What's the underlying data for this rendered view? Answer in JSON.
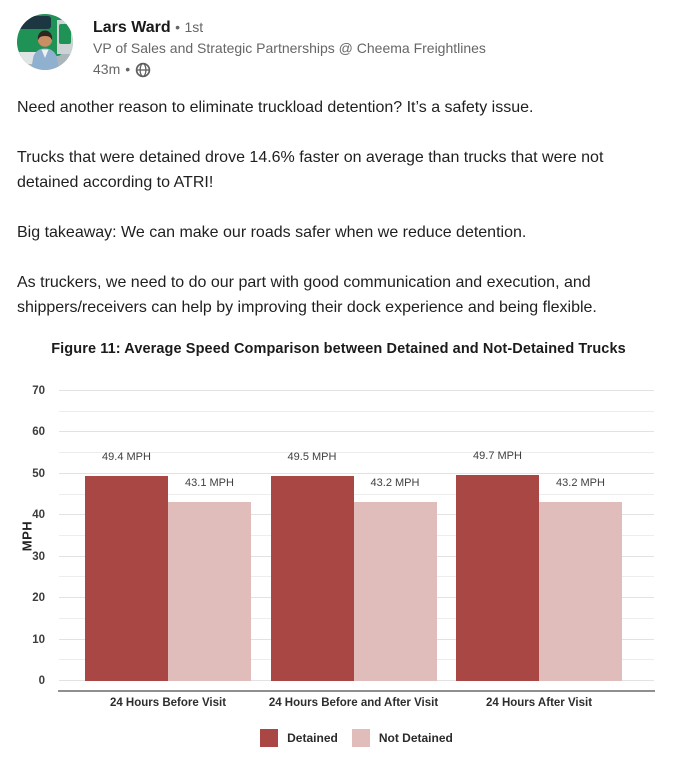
{
  "post": {
    "author": {
      "name": "Lars Ward",
      "connection_degree": "1st",
      "separator": "•",
      "headline": "VP of Sales and Strategic Partnerships @ Cheema Freightlines",
      "timestamp": "43m",
      "visibility_icon": "globe-icon"
    },
    "body_paragraphs": [
      "Need another reason to eliminate truckload detention? It’s a safety issue.",
      "Trucks that were detained drove 14.6% faster on average than trucks that were not detained according to ATRI!",
      "Big takeaway: We can make our roads safer when we reduce detention.",
      "As truckers, we need to do our part with good communication and execution, and shippers/receivers can help by improving their dock experience and being flexible."
    ]
  },
  "chart_data": {
    "type": "bar",
    "title": "Figure 11: Average Speed Comparison between Detained and Not-Detained Trucks",
    "xlabel": "",
    "ylabel": "MPH",
    "ylim": [
      0,
      70
    ],
    "ytick_step": 10,
    "grid_minor_step": 5,
    "grid": true,
    "unit_suffix": "MPH",
    "legend_position": "bottom",
    "categories": [
      "24 Hours Before Visit",
      "24 Hours Before and After Visit",
      "24 Hours After Visit"
    ],
    "series": [
      {
        "name": "Detained",
        "color": "#A84743",
        "values": [
          49.4,
          49.5,
          49.7
        ]
      },
      {
        "name": "Not Detained",
        "color": "#E0BCBB",
        "values": [
          43.1,
          43.2,
          43.2
        ]
      }
    ],
    "bar_labels": [
      [
        "49.4 MPH",
        "43.1 MPH"
      ],
      [
        "49.5 MPH",
        "43.2 MPH"
      ],
      [
        "49.7 MPH",
        "43.2 MPH"
      ]
    ]
  }
}
